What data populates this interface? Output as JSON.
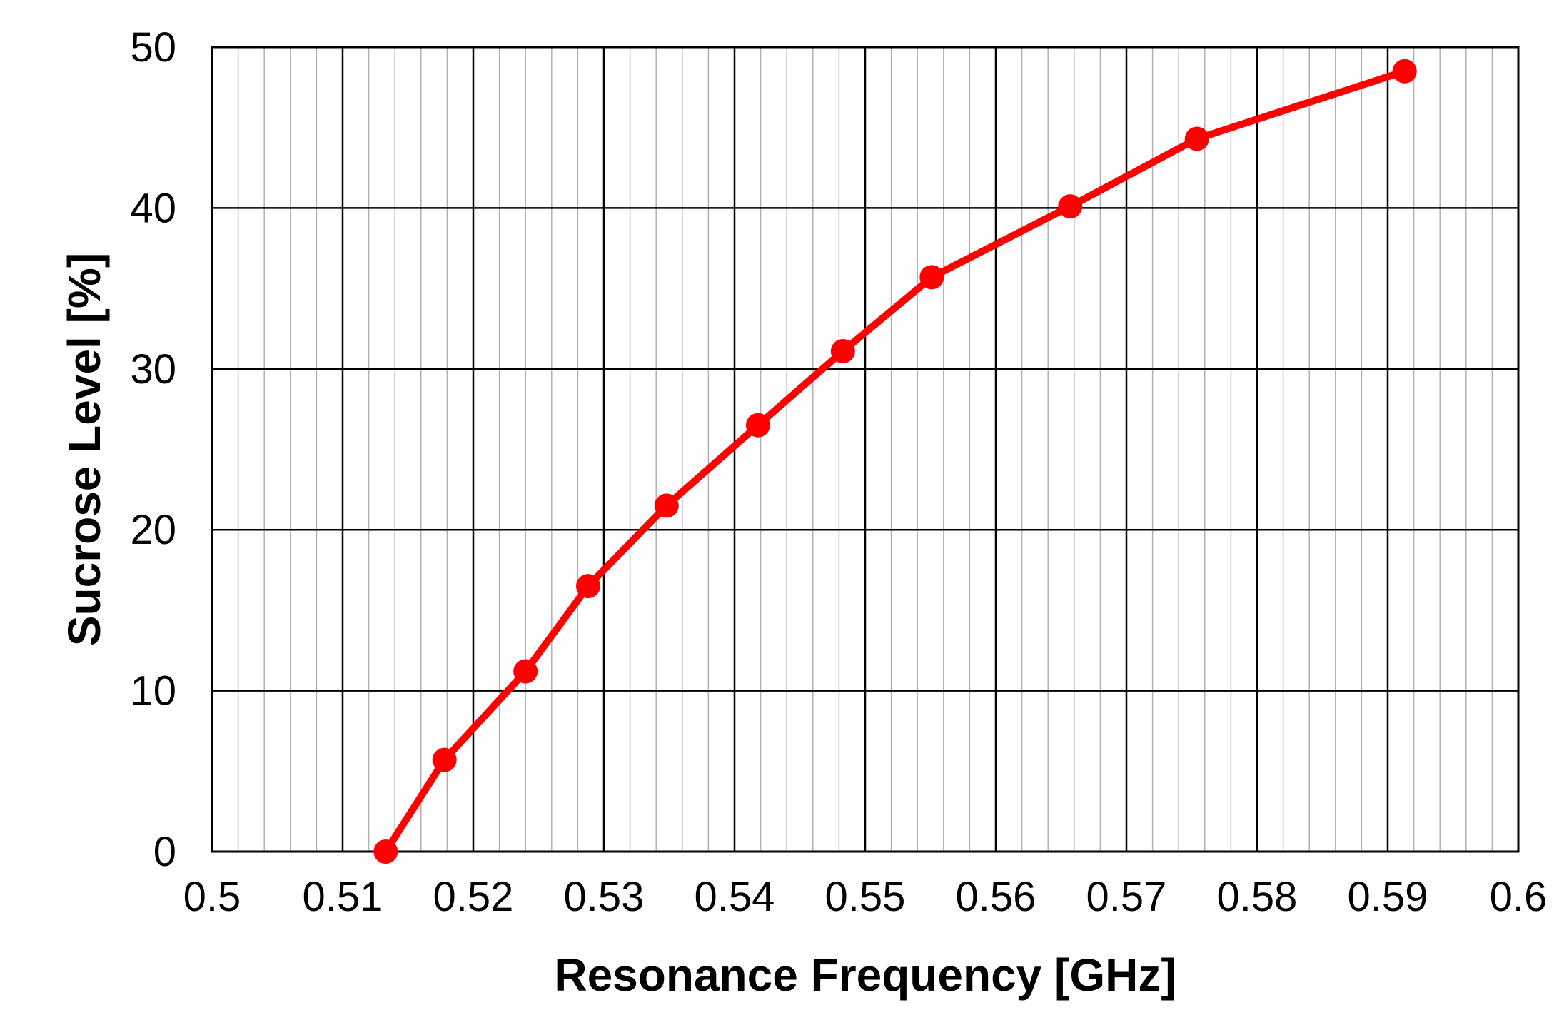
{
  "chart_data": {
    "type": "line",
    "title": "",
    "xlabel": "Resonance Frequency [GHz]",
    "ylabel": "Sucrose Level [%]",
    "xlim": [
      0.5,
      0.6
    ],
    "ylim": [
      0,
      50
    ],
    "x_major_ticks": [
      "0.5",
      "0.51",
      "0.52",
      "0.53",
      "0.54",
      "0.55",
      "0.56",
      "0.57",
      "0.58",
      "0.59",
      "0.6"
    ],
    "y_major_ticks": [
      "0",
      "10",
      "20",
      "30",
      "40",
      "50"
    ],
    "x_minor_step": 0.002,
    "grid": true,
    "legend": "none",
    "series": [
      {
        "color": "#ff0000",
        "marker": "circle",
        "x": [
          0.5133,
          0.5178,
          0.524,
          0.5288,
          0.5348,
          0.5418,
          0.5483,
          0.5551,
          0.5657,
          0.5754,
          0.5913
        ],
        "y": [
          0.0,
          5.7,
          11.2,
          16.5,
          21.5,
          26.5,
          31.1,
          35.7,
          40.1,
          44.3,
          48.5
        ]
      }
    ]
  }
}
